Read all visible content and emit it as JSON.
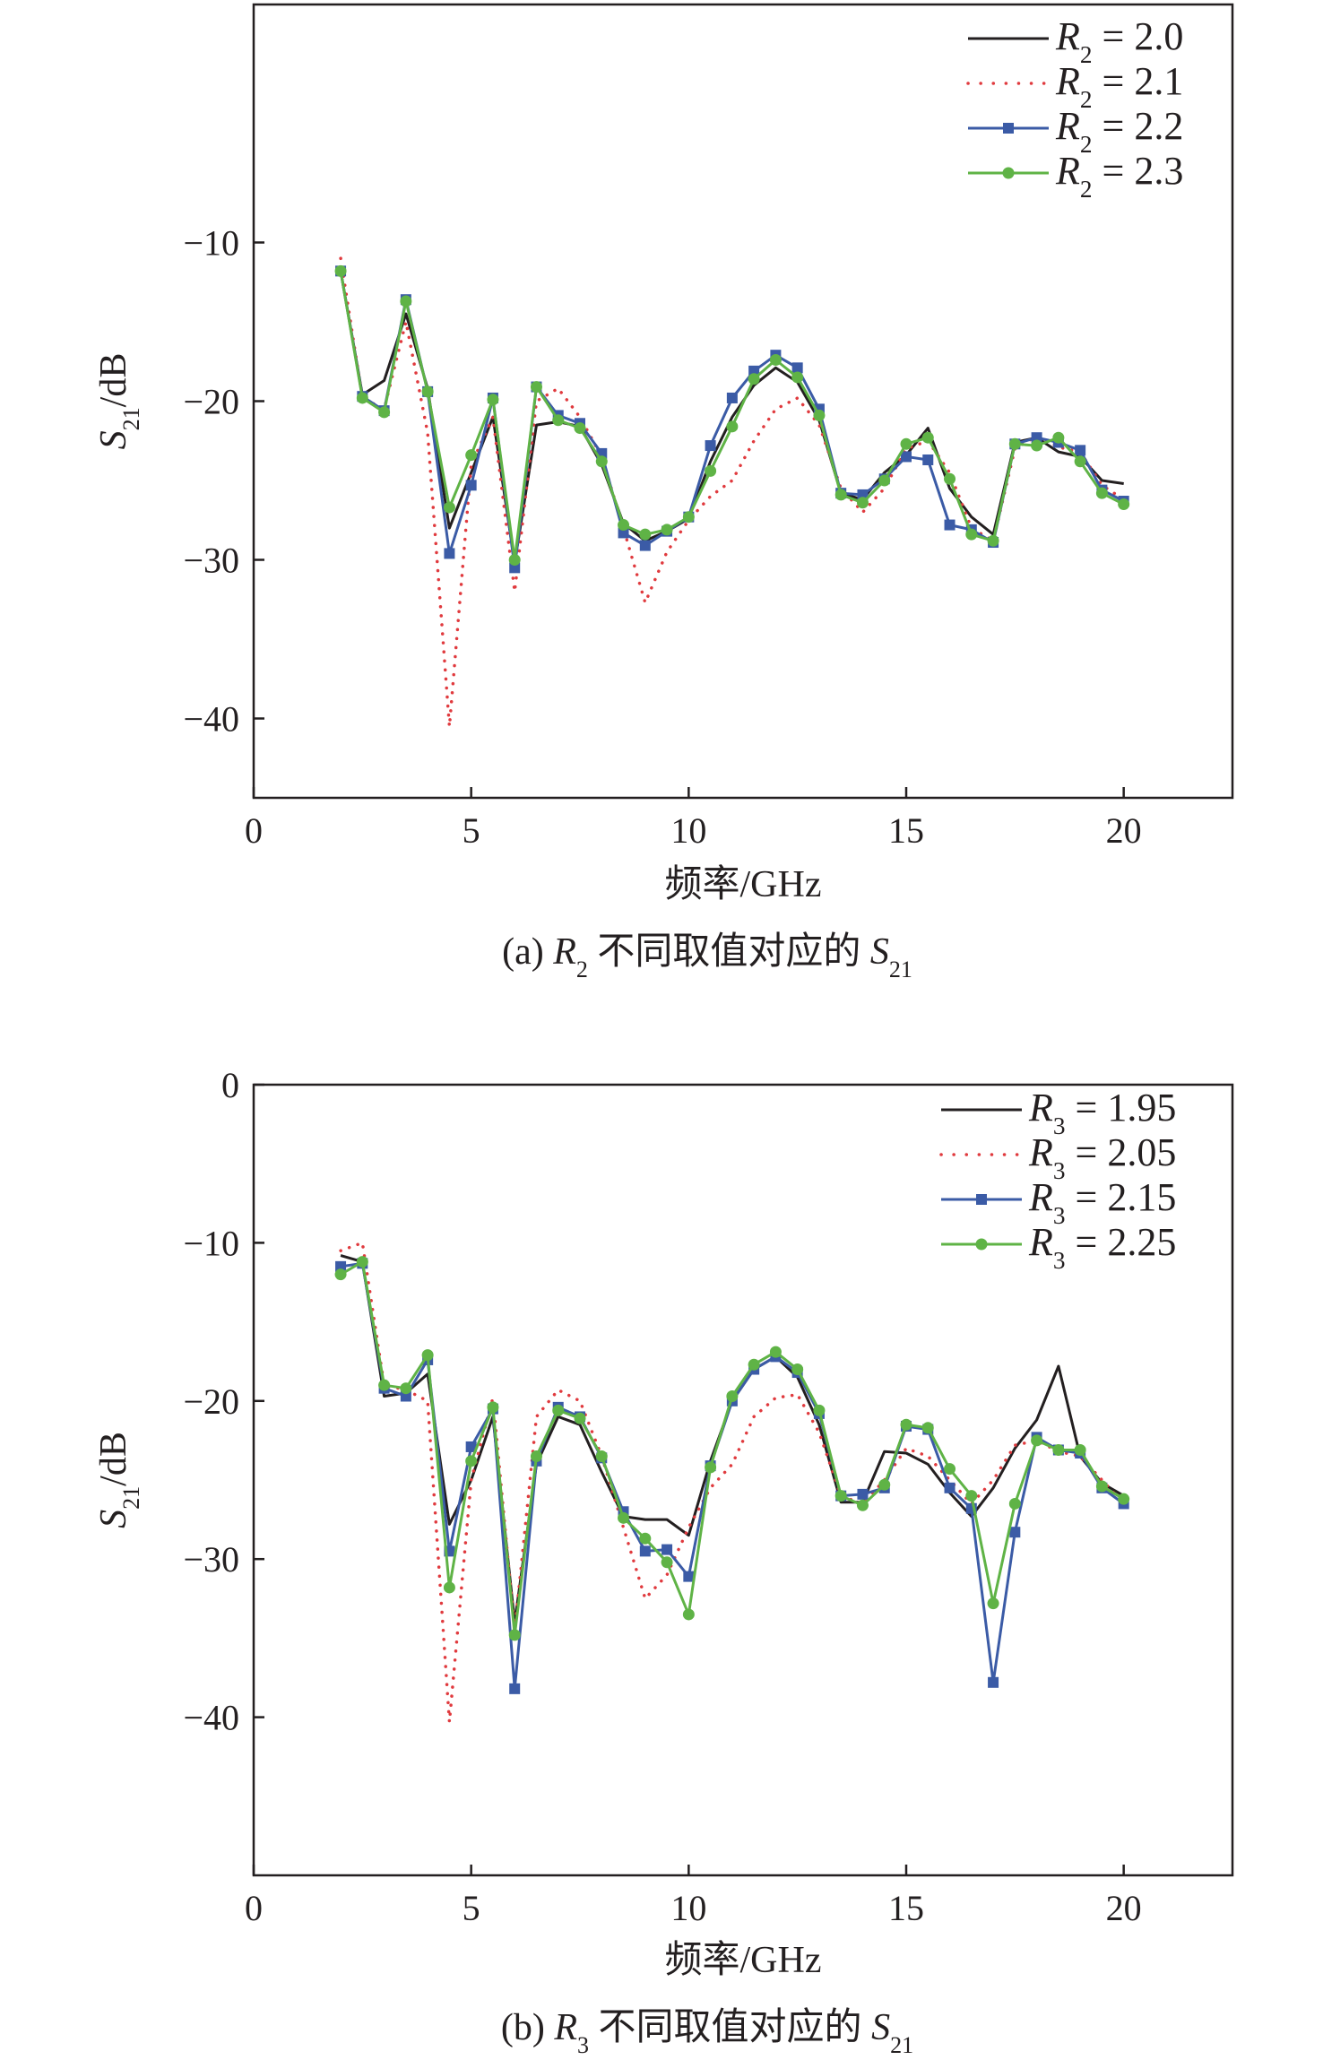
{
  "chart_data": [
    {
      "type": "line",
      "id": "a",
      "caption": {
        "prefix": "(a) ",
        "var": "R",
        "var_sub": "2",
        "mid": " 不同取值对应的 ",
        "tail": "S",
        "tail_sub": "21"
      },
      "xlabel": "频率/GHz",
      "ylabel": {
        "main": "S",
        "sub": "21",
        "tail": "/dB"
      },
      "xlim": [
        0,
        22.5
      ],
      "ylim": [
        -45,
        5
      ],
      "xticks": [
        0,
        5,
        10,
        15,
        20
      ],
      "yticks": [
        -40,
        -30,
        -20,
        -10
      ],
      "legend_position": "top-right",
      "series": [
        {
          "name": "R2 = 2.0",
          "legend": {
            "var": "R",
            "sub": "2",
            "val": " = 2.0"
          },
          "color": "#231f20",
          "style": "solid",
          "marker": "none",
          "x": [
            2,
            2.5,
            3,
            3.5,
            4,
            4.5,
            5,
            5.5,
            6,
            6.5,
            7,
            7.5,
            8,
            8.5,
            9,
            9.5,
            10,
            10.5,
            11,
            11.5,
            12,
            12.5,
            13,
            13.5,
            14,
            14.5,
            15,
            15.5,
            16,
            16.5,
            17,
            17.5,
            18,
            18.5,
            19,
            19.5,
            20
          ],
          "y": [
            -11.8,
            -19.6,
            -18.7,
            -14.5,
            -19.2,
            -28.0,
            -24.5,
            -21.0,
            -30.2,
            -21.5,
            -21.3,
            -21.6,
            -24.0,
            -27.7,
            -28.8,
            -28.2,
            -27.4,
            -23.8,
            -21.0,
            -19.0,
            -17.9,
            -18.8,
            -21.2,
            -25.8,
            -26.2,
            -24.5,
            -23.4,
            -21.7,
            -25.5,
            -27.3,
            -28.4,
            -22.6,
            -22.3,
            -23.2,
            -23.5,
            -25.0,
            -25.2
          ]
        },
        {
          "name": "R2 = 2.1",
          "legend": {
            "var": "R",
            "sub": "2",
            "val": " = 2.1"
          },
          "color": "#e03a3e",
          "style": "dotted",
          "marker": "none",
          "x": [
            2,
            2.5,
            3,
            3.5,
            4,
            4.5,
            5,
            5.5,
            6,
            6.5,
            7,
            7.5,
            8,
            8.5,
            9,
            9.5,
            10,
            10.5,
            11,
            11.5,
            12,
            12.5,
            13,
            13.5,
            14,
            14.5,
            15,
            15.5,
            16,
            16.5,
            17,
            17.5,
            18,
            18.5,
            19,
            19.5,
            20
          ],
          "y": [
            -11.0,
            -19.8,
            -20.5,
            -15.0,
            -22.0,
            -40.5,
            -24.0,
            -21.0,
            -32.0,
            -20.0,
            -19.2,
            -21.0,
            -23.5,
            -28.0,
            -32.7,
            -29.5,
            -27.5,
            -26.0,
            -25.0,
            -22.5,
            -20.5,
            -19.8,
            -21.5,
            -25.5,
            -27.0,
            -25.5,
            -23.0,
            -22.5,
            -24.5,
            -28.0,
            -28.8,
            -23.0,
            -22.2,
            -22.9,
            -23.2,
            -25.3,
            -26.2
          ]
        },
        {
          "name": "R2 = 2.2",
          "legend": {
            "var": "R",
            "sub": "2",
            "val": " = 2.2"
          },
          "color": "#3b5ba6",
          "style": "solid",
          "marker": "square",
          "x": [
            2,
            2.5,
            3,
            3.5,
            4,
            4.5,
            5,
            5.5,
            6,
            6.5,
            7,
            7.5,
            8,
            8.5,
            9,
            9.5,
            10,
            10.5,
            11,
            11.5,
            12,
            12.5,
            13,
            13.5,
            14,
            14.5,
            15,
            15.5,
            16,
            16.5,
            17,
            17.5,
            18,
            18.5,
            19,
            19.5,
            20
          ],
          "y": [
            -11.8,
            -19.7,
            -20.6,
            -13.6,
            -19.4,
            -29.6,
            -25.3,
            -19.8,
            -30.5,
            -19.1,
            -20.9,
            -21.4,
            -23.3,
            -28.3,
            -29.1,
            -28.2,
            -27.3,
            -22.8,
            -19.8,
            -18.1,
            -17.1,
            -17.9,
            -20.5,
            -25.8,
            -25.9,
            -24.9,
            -23.5,
            -23.7,
            -27.8,
            -28.1,
            -28.9,
            -22.7,
            -22.3,
            -22.6,
            -23.1,
            -25.6,
            -26.3
          ]
        },
        {
          "name": "R2 = 2.3",
          "legend": {
            "var": "R",
            "sub": "2",
            "val": " = 2.3"
          },
          "color": "#5fb346",
          "style": "solid",
          "marker": "circle",
          "x": [
            2,
            2.5,
            3,
            3.5,
            4,
            4.5,
            5,
            5.5,
            6,
            6.5,
            7,
            7.5,
            8,
            8.5,
            9,
            9.5,
            10,
            10.5,
            11,
            11.5,
            12,
            12.5,
            13,
            13.5,
            14,
            14.5,
            15,
            15.5,
            16,
            16.5,
            17,
            17.5,
            18,
            18.5,
            19,
            19.5,
            20
          ],
          "y": [
            -11.8,
            -19.8,
            -20.7,
            -13.7,
            -19.4,
            -26.7,
            -23.4,
            -19.9,
            -30.0,
            -19.1,
            -21.2,
            -21.7,
            -23.8,
            -27.8,
            -28.4,
            -28.1,
            -27.3,
            -24.4,
            -21.6,
            -18.6,
            -17.4,
            -18.5,
            -20.9,
            -25.9,
            -26.4,
            -25.0,
            -22.7,
            -22.3,
            -24.9,
            -28.4,
            -28.8,
            -22.7,
            -22.8,
            -22.3,
            -23.8,
            -25.8,
            -26.5
          ]
        }
      ]
    },
    {
      "type": "line",
      "id": "b",
      "caption": {
        "prefix": "(b) ",
        "var": "R",
        "var_sub": "3",
        "mid": " 不同取值对应的 ",
        "tail": "S",
        "tail_sub": "21"
      },
      "xlabel": "频率/GHz",
      "ylabel": {
        "main": "S",
        "sub": "21",
        "tail": "/dB"
      },
      "xlim": [
        0,
        22.5
      ],
      "ylim": [
        -50,
        0
      ],
      "xticks": [
        0,
        5,
        10,
        15,
        20
      ],
      "yticks": [
        -40,
        -30,
        -20,
        -10,
        0
      ],
      "legend_position": "top-right",
      "series": [
        {
          "name": "R3 = 1.95",
          "legend": {
            "var": "R",
            "sub": "3",
            "val": " = 1.95"
          },
          "color": "#231f20",
          "style": "solid",
          "marker": "none",
          "x": [
            2,
            2.5,
            3,
            3.5,
            4,
            4.5,
            5,
            5.5,
            6,
            6.5,
            7,
            7.5,
            8,
            8.5,
            9,
            9.5,
            10,
            10.5,
            11,
            11.5,
            12,
            12.5,
            13,
            13.5,
            14,
            14.5,
            15,
            15.5,
            16,
            16.5,
            17,
            17.5,
            18,
            18.5,
            19,
            19.5,
            20
          ],
          "y": [
            -10.8,
            -11.2,
            -19.7,
            -19.5,
            -18.3,
            -27.8,
            -25.0,
            -21.0,
            -34.0,
            -24.0,
            -21.0,
            -21.5,
            -24.5,
            -27.3,
            -27.5,
            -27.5,
            -28.5,
            -23.8,
            -20.0,
            -18.0,
            -17.2,
            -18.5,
            -21.5,
            -26.4,
            -26.4,
            -23.2,
            -23.3,
            -24.0,
            -25.8,
            -27.3,
            -25.5,
            -23.0,
            -21.2,
            -17.8,
            -23.5,
            -25.2,
            -26.0
          ]
        },
        {
          "name": "R3 = 2.05",
          "legend": {
            "var": "R",
            "sub": "3",
            "val": " = 2.05"
          },
          "color": "#e03a3e",
          "style": "dotted",
          "marker": "none",
          "x": [
            2,
            2.5,
            3,
            3.5,
            4,
            4.5,
            5,
            5.5,
            6,
            6.5,
            7,
            7.5,
            8,
            8.5,
            9,
            9.5,
            10,
            10.5,
            11,
            11.5,
            12,
            12.5,
            13,
            13.5,
            14,
            14.5,
            15,
            15.5,
            16,
            16.5,
            17,
            17.5,
            18,
            18.5,
            19,
            19.5,
            20
          ],
          "y": [
            -10.5,
            -10.0,
            -19.0,
            -19.3,
            -20.0,
            -40.3,
            -25.0,
            -19.8,
            -34.5,
            -21.0,
            -19.3,
            -20.0,
            -23.5,
            -28.0,
            -32.5,
            -31.0,
            -28.0,
            -25.5,
            -24.0,
            -21.0,
            -19.8,
            -19.6,
            -22.0,
            -26.0,
            -26.5,
            -25.0,
            -23.0,
            -23.5,
            -25.0,
            -26.5,
            -25.0,
            -22.8,
            -22.5,
            -23.2,
            -23.5,
            -25.0,
            -26.5
          ]
        },
        {
          "name": "R3 = 2.15",
          "legend": {
            "var": "R",
            "sub": "3",
            "val": " = 2.15"
          },
          "color": "#3b5ba6",
          "style": "solid",
          "marker": "square",
          "x": [
            2,
            2.5,
            3,
            3.5,
            4,
            4.5,
            5,
            5.5,
            6,
            6.5,
            7,
            7.5,
            8,
            8.5,
            9,
            9.5,
            10,
            10.5,
            11,
            11.5,
            12,
            12.5,
            13,
            13.5,
            14,
            14.5,
            15,
            15.5,
            16,
            16.5,
            17,
            17.5,
            18,
            18.5,
            19,
            19.5,
            20
          ],
          "y": [
            -11.5,
            -11.3,
            -19.2,
            -19.7,
            -17.4,
            -29.5,
            -22.9,
            -20.5,
            -38.2,
            -23.8,
            -20.4,
            -21.0,
            -23.6,
            -27.0,
            -29.5,
            -29.4,
            -31.1,
            -24.1,
            -20.0,
            -18.0,
            -17.2,
            -18.2,
            -20.8,
            -26.0,
            -25.9,
            -25.5,
            -21.6,
            -21.8,
            -25.5,
            -26.8,
            -37.8,
            -28.3,
            -22.3,
            -23.1,
            -23.3,
            -25.5,
            -26.5
          ]
        },
        {
          "name": "R3 = 2.25",
          "legend": {
            "var": "R",
            "sub": "3",
            "val": " = 2.25"
          },
          "color": "#5fb346",
          "style": "solid",
          "marker": "circle",
          "x": [
            2,
            2.5,
            3,
            3.5,
            4,
            4.5,
            5,
            5.5,
            6,
            6.5,
            7,
            7.5,
            8,
            8.5,
            9,
            9.5,
            10,
            10.5,
            11,
            11.5,
            12,
            12.5,
            13,
            13.5,
            14,
            14.5,
            15,
            15.5,
            16,
            16.5,
            17,
            17.5,
            18,
            18.5,
            19,
            19.5,
            20
          ],
          "y": [
            -12.0,
            -11.2,
            -19.0,
            -19.2,
            -17.1,
            -31.8,
            -23.8,
            -20.4,
            -34.8,
            -23.5,
            -20.6,
            -21.1,
            -23.5,
            -27.4,
            -28.7,
            -30.2,
            -33.5,
            -24.2,
            -19.7,
            -17.7,
            -16.9,
            -18.0,
            -20.6,
            -26.0,
            -26.6,
            -25.3,
            -21.5,
            -21.7,
            -24.3,
            -26.0,
            -32.8,
            -26.5,
            -22.5,
            -23.1,
            -23.1,
            -25.4,
            -26.2
          ]
        }
      ]
    }
  ]
}
